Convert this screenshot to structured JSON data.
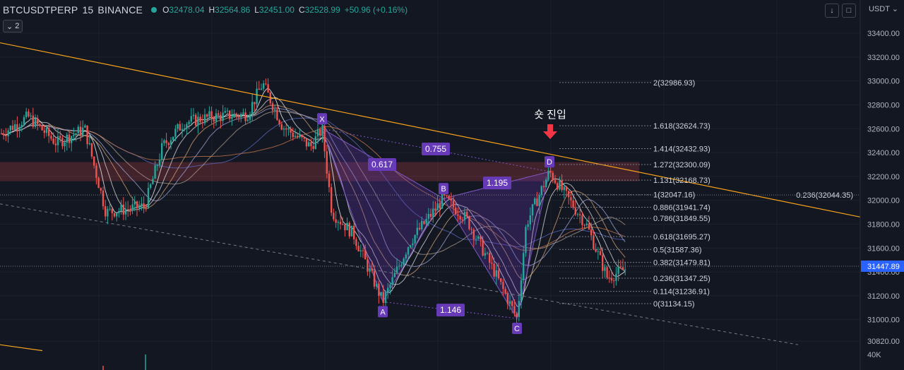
{
  "header": {
    "symbol": "BTCUSDTPERP",
    "interval": "15",
    "exchange": "BINANCE",
    "ohlc": {
      "open_label": "O",
      "open": "32478.04",
      "high_label": "H",
      "high": "32564.86",
      "low_label": "L",
      "low": "32451.00",
      "close_label": "C",
      "close": "32528.99",
      "change": "+50.96 (+0.16%)"
    },
    "indicator_count": "2",
    "currency": "USDT"
  },
  "colors": {
    "background": "#131722",
    "up": "#26a69a",
    "down": "#ef5350",
    "trendline": "#f7a21b",
    "pattern": "#673ab7",
    "entry_arrow": "#f23645",
    "last_price": "#2962ff"
  },
  "chart_data": {
    "type": "candlestick",
    "ylim": [
      30720,
      33560
    ],
    "y_ticks": [
      "33400.00",
      "33200.00",
      "33000.00",
      "32800.00",
      "32600.00",
      "32400.00",
      "32200.00",
      "32000.00",
      "31800.00",
      "31600.00",
      "31400.00",
      "31200.00",
      "31000.00",
      "30820.00"
    ],
    "volume_label": "40K",
    "last_price": "31447.89",
    "pattern": {
      "points": [
        {
          "label": "X",
          "price": 32600
        },
        {
          "label": "A",
          "price": 31150
        },
        {
          "label": "B",
          "price": 32015
        },
        {
          "label": "C",
          "price": 31010
        },
        {
          "label": "D",
          "price": 32240
        }
      ],
      "ratios": [
        "0.617",
        "0.755",
        "1.195",
        "1.146"
      ]
    },
    "annotation": "숏 진입",
    "fib_levels": [
      {
        "ratio": "2",
        "price": 32986.93,
        "label": "2(32986.93)"
      },
      {
        "ratio": "1.618",
        "price": 32624.73,
        "label": "1.618(32624.73)"
      },
      {
        "ratio": "1.414",
        "price": 32432.93,
        "label": "1.414(32432.93)"
      },
      {
        "ratio": "1.272",
        "price": 32300.09,
        "label": "1.272(32300.09)"
      },
      {
        "ratio": "1.131",
        "price": 32168.73,
        "label": "1.131(32168.73)"
      },
      {
        "ratio": "1",
        "price": 32047.16,
        "label": "1(32047.16)"
      },
      {
        "ratio": "0.886",
        "price": 31941.74,
        "label": "0.886(31941.74)"
      },
      {
        "ratio": "0.786",
        "price": 31849.55,
        "label": "0.786(31849.55)"
      },
      {
        "ratio": "0.618",
        "price": 31695.27,
        "label": "0.618(31695.27)"
      },
      {
        "ratio": "0.5",
        "price": 31587.36,
        "label": "0.5(31587.36)"
      },
      {
        "ratio": "0.382",
        "price": 31479.81,
        "label": "0.382(31479.81)"
      },
      {
        "ratio": "0.236",
        "price": 31347.25,
        "label": "0.236(31347.25)"
      },
      {
        "ratio": "0.114",
        "price": 31236.91,
        "label": "0.114(31236.91)"
      },
      {
        "ratio": "0",
        "price": 31134.15,
        "label": "0(31134.15)"
      }
    ],
    "trendline_label": "0.236(32044.35)",
    "resistance_zone": [
      32160,
      32320
    ]
  }
}
